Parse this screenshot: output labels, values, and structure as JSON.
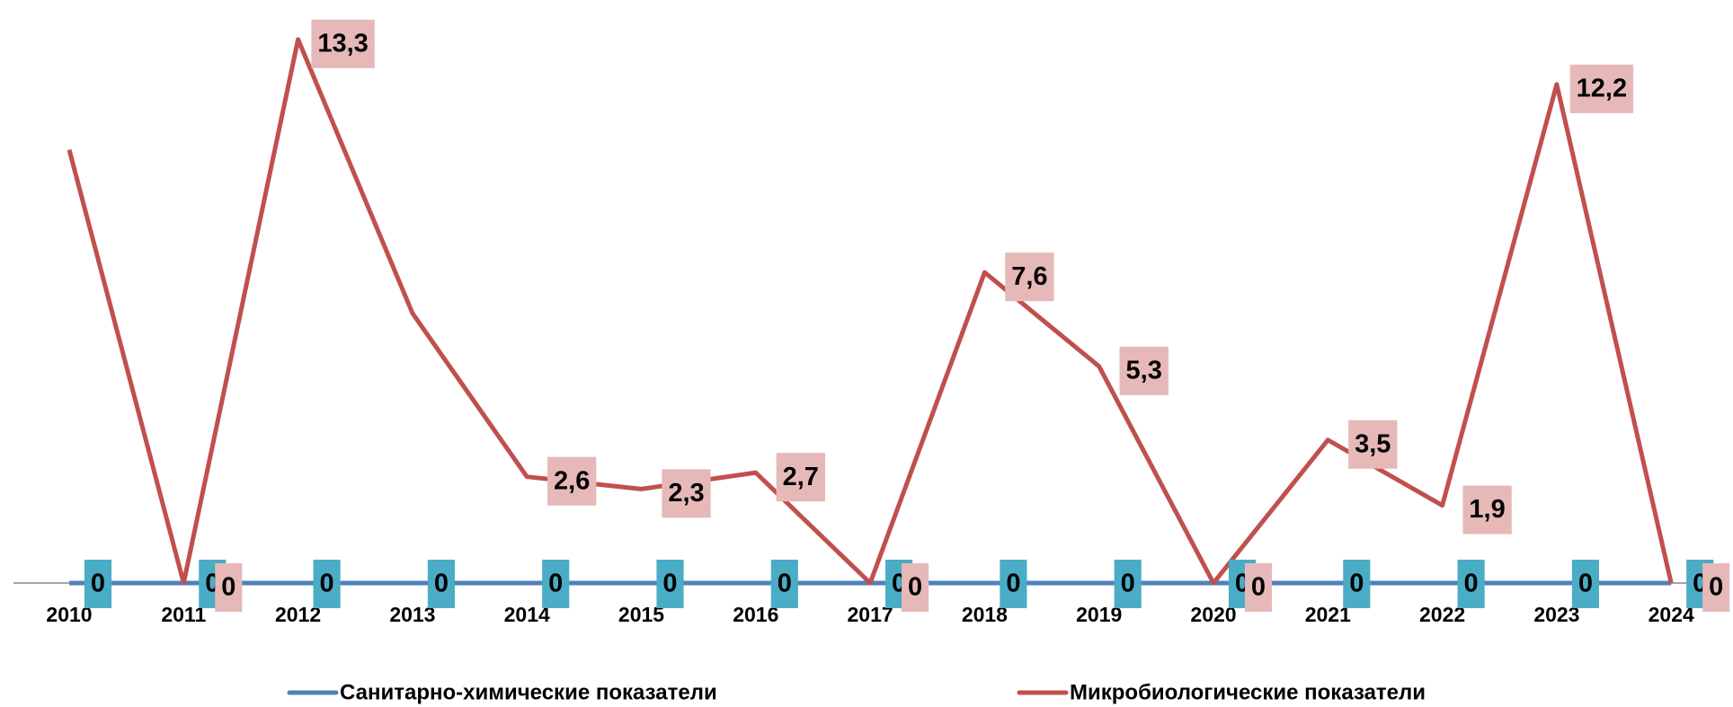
{
  "chart_data": {
    "type": "line",
    "categories": [
      "2010",
      "2011",
      "2012",
      "2013",
      "2014",
      "2015",
      "2016",
      "2017",
      "2018",
      "2019",
      "2020",
      "2021",
      "2022",
      "2023",
      "2024"
    ],
    "series": [
      {
        "name": "Санитарно-химические показатели",
        "color": "#4f81bd",
        "label_color": "#4bacc6",
        "values": [
          0,
          0,
          0,
          0,
          0,
          0,
          0,
          0,
          0,
          0,
          0,
          0,
          0,
          0,
          0
        ]
      },
      {
        "name": "Микробиологические показатели",
        "color": "#c0504d",
        "label_color": "#e6b9b8",
        "values": [
          10.6,
          0,
          13.3,
          6.6,
          2.6,
          2.3,
          2.7,
          0,
          7.6,
          5.3,
          0,
          3.5,
          1.9,
          12.2,
          0
        ],
        "value_labels": [
          null,
          "0",
          "13,3",
          null,
          "2,6",
          "2,3",
          "2,7",
          "0",
          "7,6",
          "5,3",
          "0",
          "3,5",
          "1,9",
          "12,2",
          "0"
        ]
      }
    ],
    "ylim": [
      0,
      14
    ]
  }
}
